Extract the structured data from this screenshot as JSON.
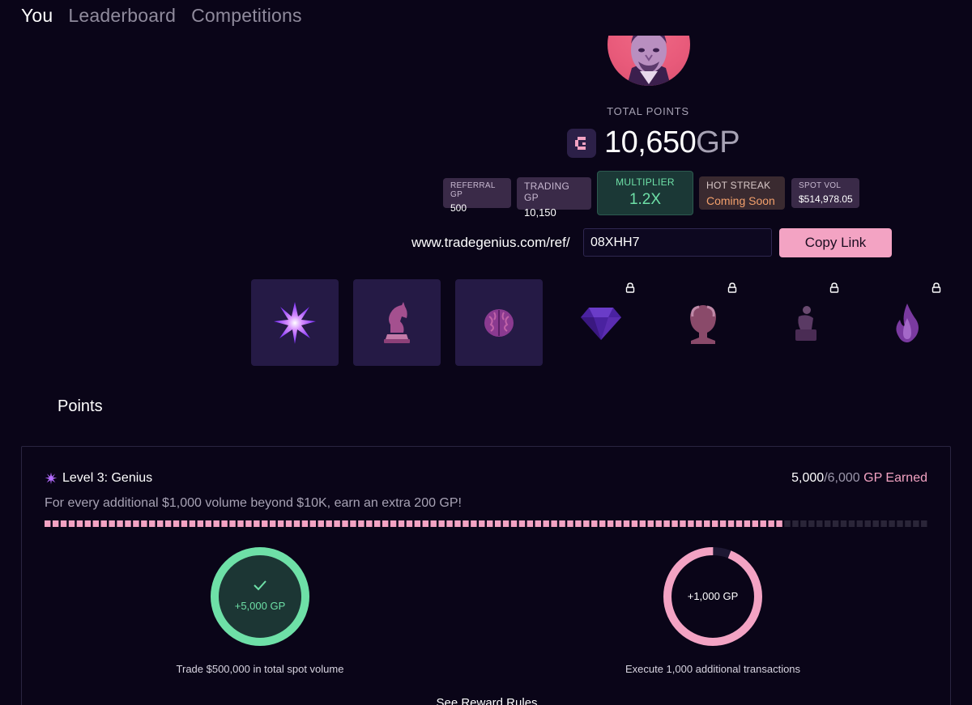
{
  "nav": {
    "tabs": [
      {
        "label": "You",
        "active": true
      },
      {
        "label": "Leaderboard",
        "active": false
      },
      {
        "label": "Competitions",
        "active": false
      }
    ]
  },
  "profile": {
    "total_label": "TOTAL POINTS",
    "points_value": "10,650",
    "points_unit": "GP",
    "logo_icon": "gp-logo-icon"
  },
  "stats": {
    "referral": {
      "label": "REFERRAL GP",
      "value": "500"
    },
    "trading": {
      "label": "TRADING GP",
      "value": "10,150"
    },
    "multiplier": {
      "label": "MULTIPLIER",
      "value": "1.2X"
    },
    "hot_streak": {
      "label": "HOT STREAK",
      "value": "Coming Soon"
    },
    "spot_vol": {
      "label": "SPOT VOL",
      "value": "$514,978.05"
    }
  },
  "referral_link": {
    "prefix": "www.tradegenius.com/ref/",
    "code": "08XHH7",
    "copy_label": "Copy Link"
  },
  "badges": [
    {
      "icon": "starburst-icon",
      "locked": false
    },
    {
      "icon": "chess-knight-icon",
      "locked": false
    },
    {
      "icon": "brain-icon",
      "locked": false
    },
    {
      "icon": "diamond-icon",
      "locked": true
    },
    {
      "icon": "bust-icon",
      "locked": true
    },
    {
      "icon": "statue-icon",
      "locked": true
    },
    {
      "icon": "flame-icon",
      "locked": true
    }
  ],
  "points_section": {
    "title": "Points",
    "level_title": "Level 3: Genius",
    "earned_current": "5,000",
    "earned_total": "/6,000",
    "earned_suffix": " GP Earned",
    "description": "For every additional $1,000 volume beyond $10K, earn an extra 200 GP!",
    "progress_fraction": 0.833,
    "tasks": [
      {
        "reward": "+5,000 GP",
        "label": "Trade $500,000 in total spot volume",
        "complete": true,
        "progress": 1.0
      },
      {
        "reward": "+1,000 GP",
        "label": "Execute 1,000 additional transactions",
        "complete": false,
        "progress": 0.94
      }
    ],
    "rules_link": "See Reward Rules"
  },
  "colors": {
    "accent_pink": "#f3a3c3",
    "success_green": "#6ee0a7",
    "background": "#0a0518"
  }
}
